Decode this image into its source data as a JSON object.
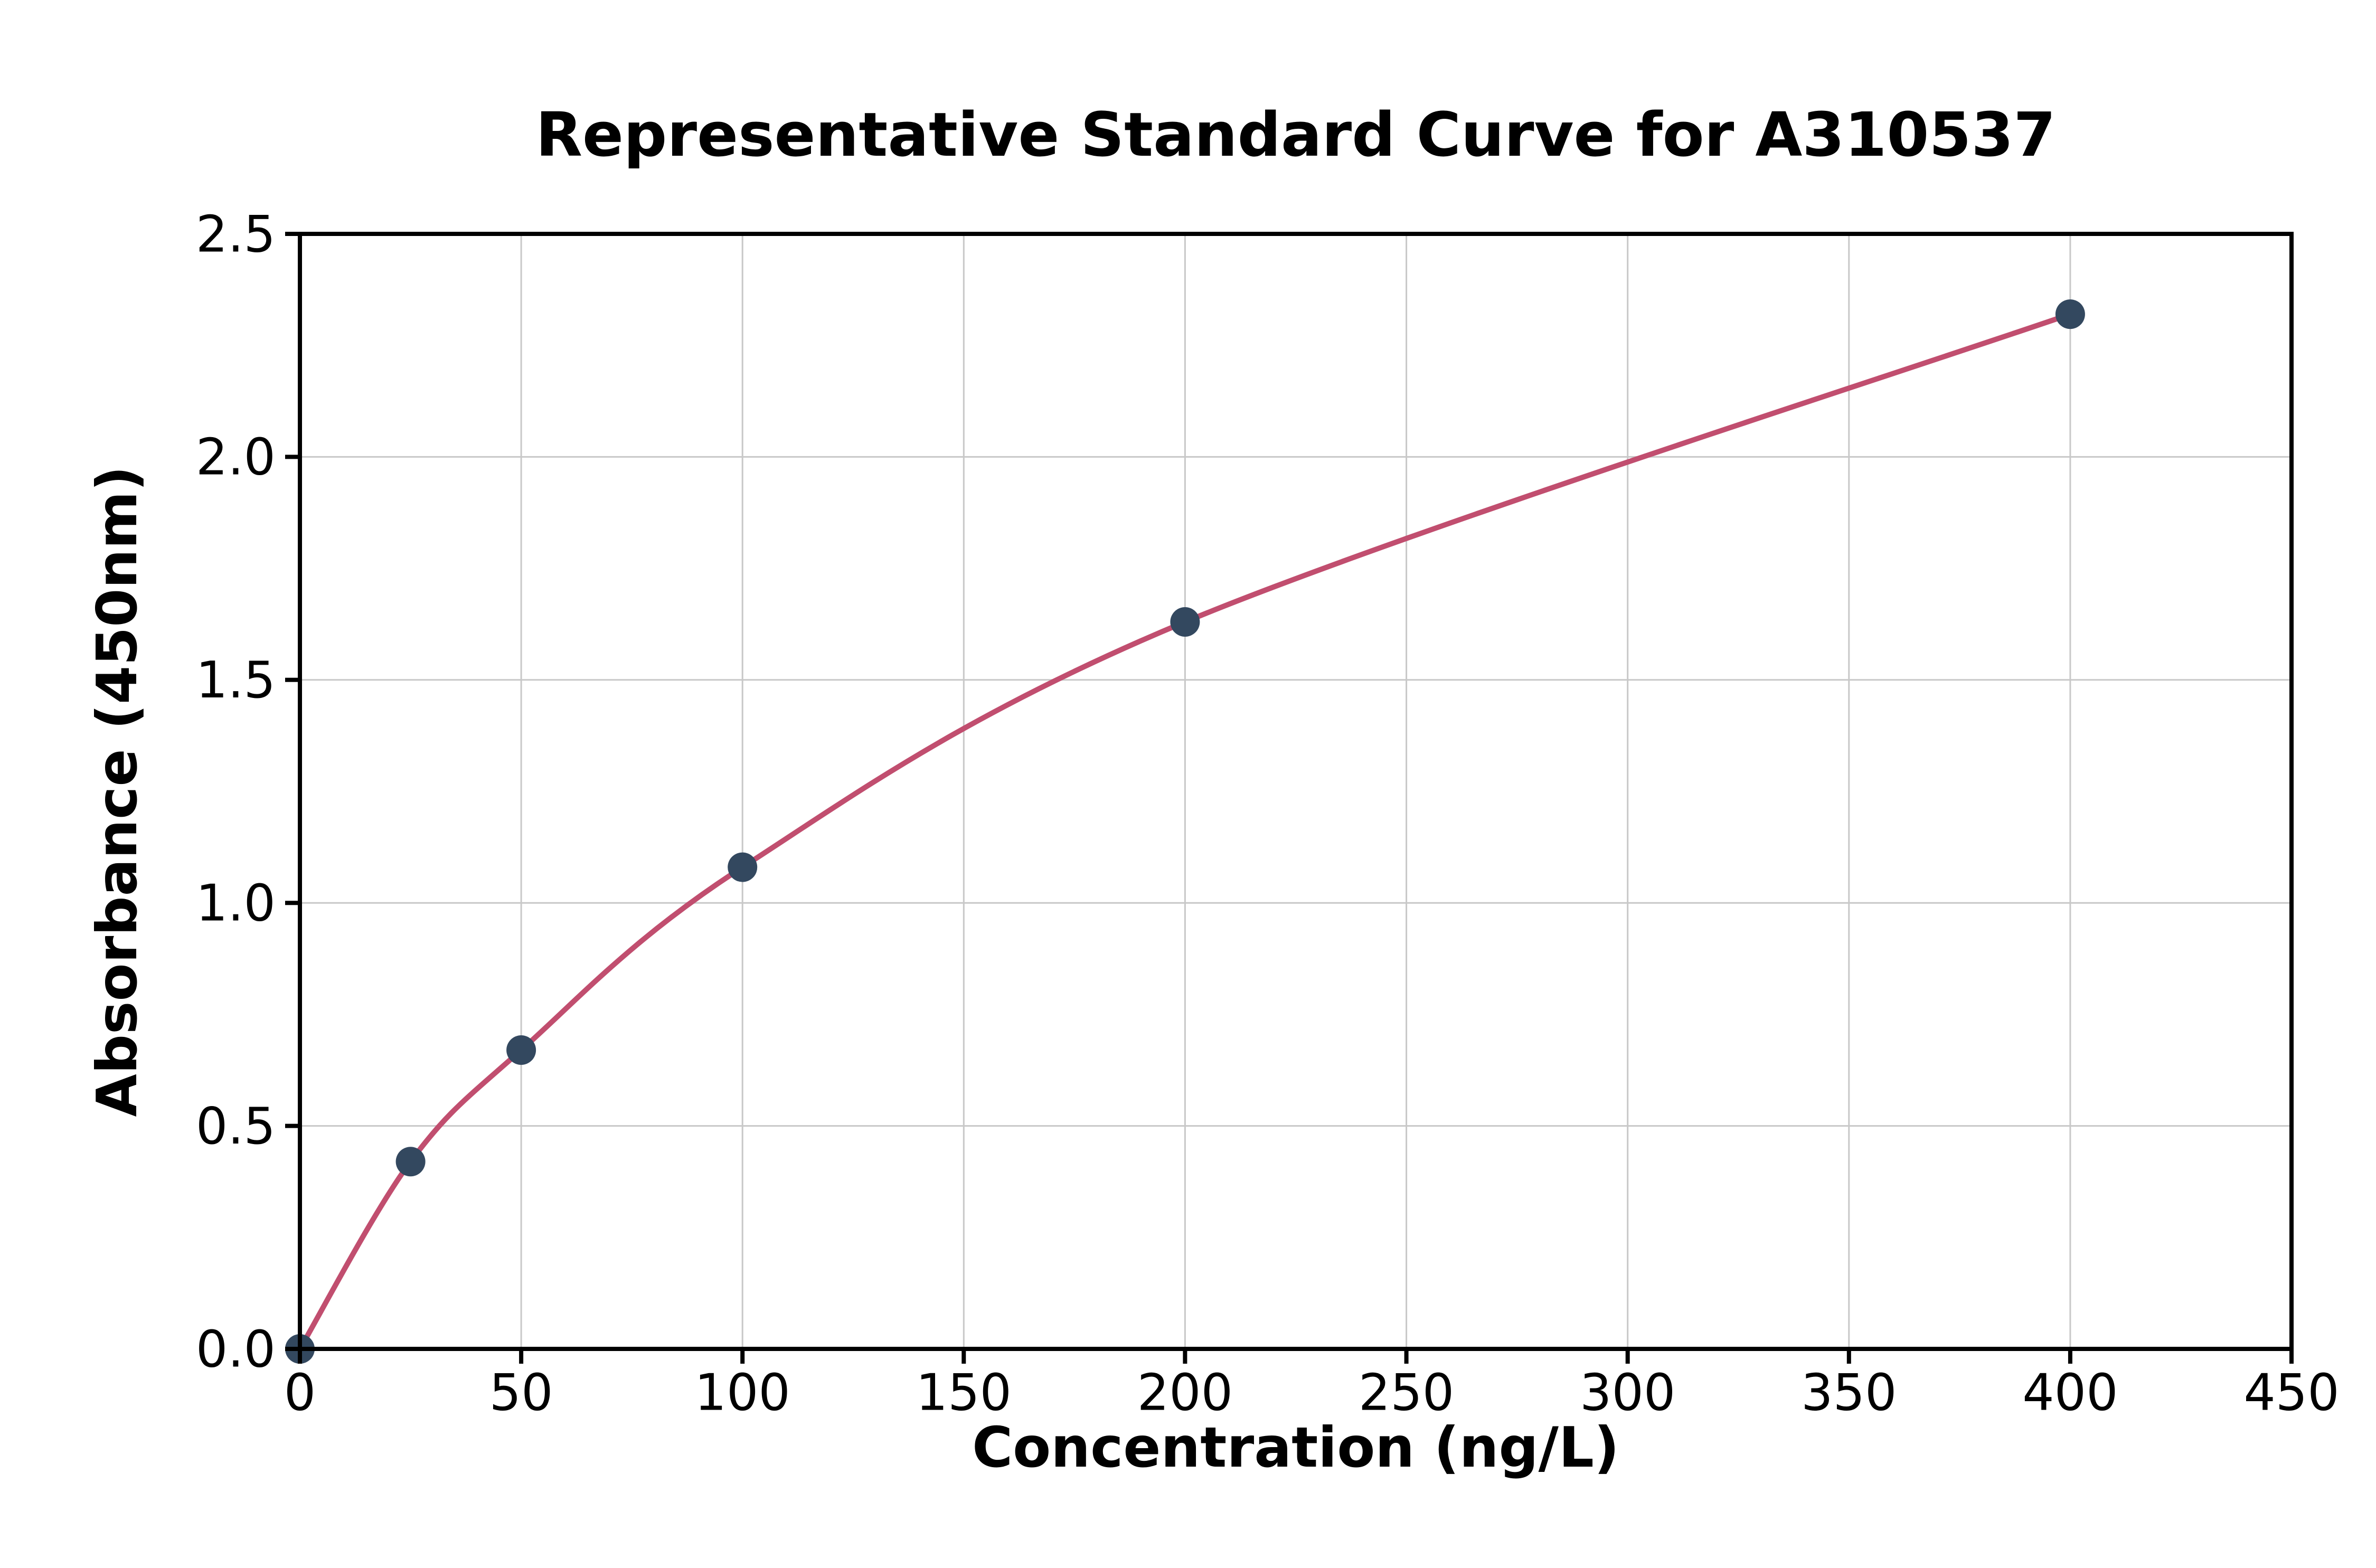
{
  "page": {
    "background": "#ffffff"
  },
  "chart_data": {
    "type": "line",
    "title": "Representative Standard Curve for A310537",
    "xlabel": "Concentration (ng/L)",
    "ylabel": "Absorbance (450nm)",
    "xlim": [
      0,
      450
    ],
    "ylim": [
      0,
      2.5
    ],
    "x_ticks": [
      0,
      50,
      100,
      150,
      200,
      250,
      300,
      350,
      400,
      450
    ],
    "x_tick_labels": [
      "0",
      "50",
      "100",
      "150",
      "200",
      "250",
      "300",
      "350",
      "400",
      "450"
    ],
    "y_ticks": [
      0,
      0.5,
      1.0,
      1.5,
      2.0,
      2.5
    ],
    "y_tick_labels": [
      "0.0",
      "0.5",
      "1.0",
      "1.5",
      "2.0",
      "2.5"
    ],
    "grid": true,
    "legend": "none",
    "series": [
      {
        "name": "standard-curve",
        "x": [
          0,
          25,
          50,
          100,
          200,
          400
        ],
        "y": [
          0.0,
          0.42,
          0.67,
          1.08,
          1.63,
          2.32
        ]
      }
    ],
    "colors": {
      "curve": "#c14e6f",
      "marker": "#33485f",
      "grid": "#c8c8c8",
      "spine": "#000000",
      "text": "#000000",
      "background": "#ffffff"
    }
  }
}
